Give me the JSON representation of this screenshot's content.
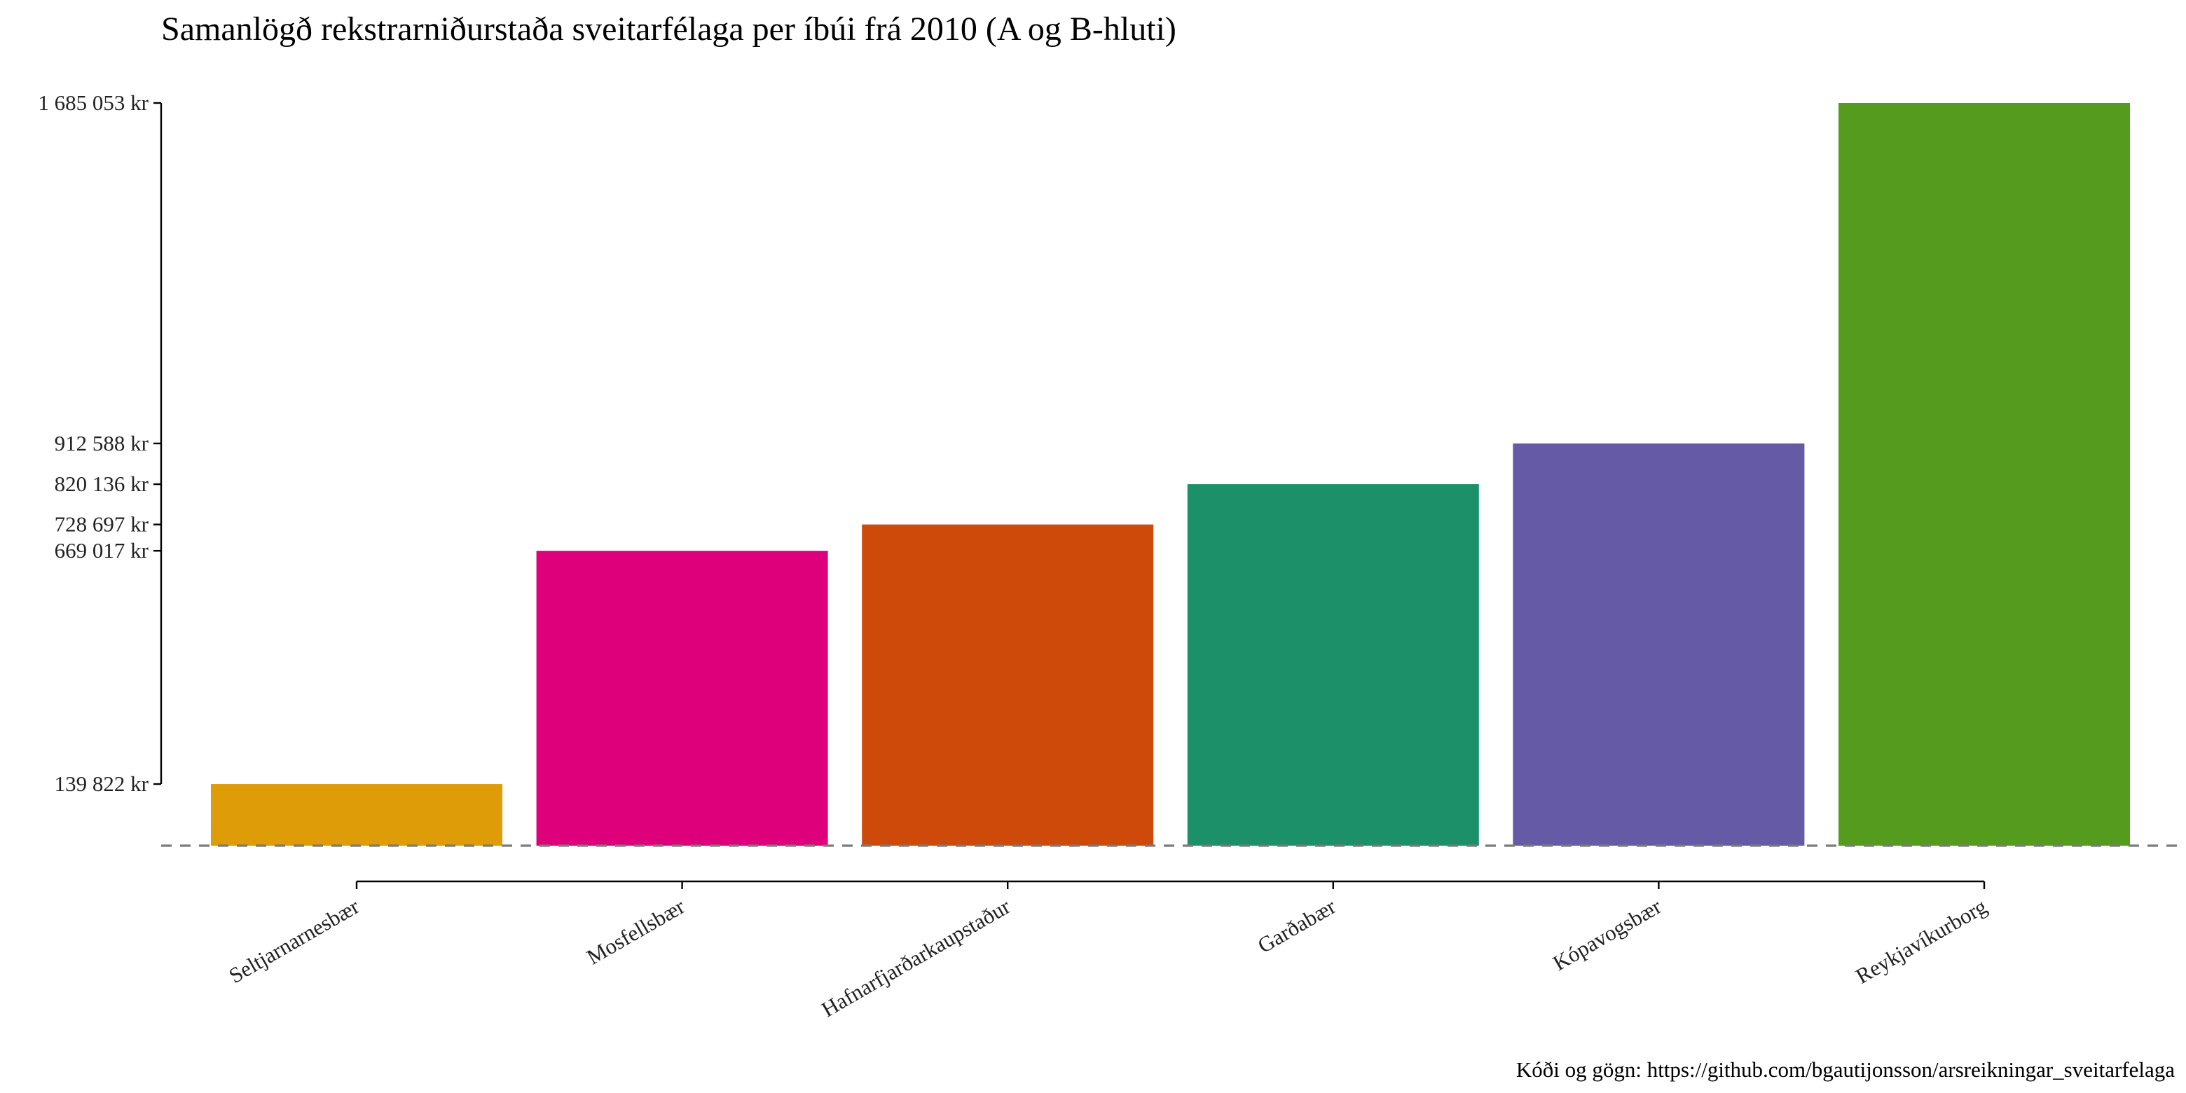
{
  "chart_data": {
    "type": "bar",
    "title": "Samanlögð rekstrarniðurstaða sveitarfélaga per íbúi frá 2010 (A og B-hluti)",
    "xlabel": "",
    "ylabel": "",
    "caption": "Kóði og gögn: https://github.com/bgautijonsson/arsreikningar_sveitarfelaga",
    "categories": [
      "Seltjarnarnesbær",
      "Mosfellsbær",
      "Hafnarfjarðarkaupstaður",
      "Garðabær",
      "Kópavogsbær",
      "Reykjavíkurborg"
    ],
    "values": [
      139822,
      669017,
      728697,
      820136,
      912588,
      1685053
    ],
    "y_tick_values": [
      139822,
      669017,
      728697,
      820136,
      912588,
      1685053
    ],
    "y_tick_labels": [
      "139 822 kr",
      "669 017 kr",
      "728 697 kr",
      "820 136 kr",
      "912 588 kr",
      "1 685 053 kr"
    ],
    "ylim": [
      0,
      1685053
    ],
    "reference_line": 0,
    "grid": false,
    "legend": "none",
    "colors": [
      "#DE9C09",
      "#DE007A",
      "#CE4A0A",
      "#1C9068",
      "#645AA6",
      "#559B1D"
    ]
  }
}
